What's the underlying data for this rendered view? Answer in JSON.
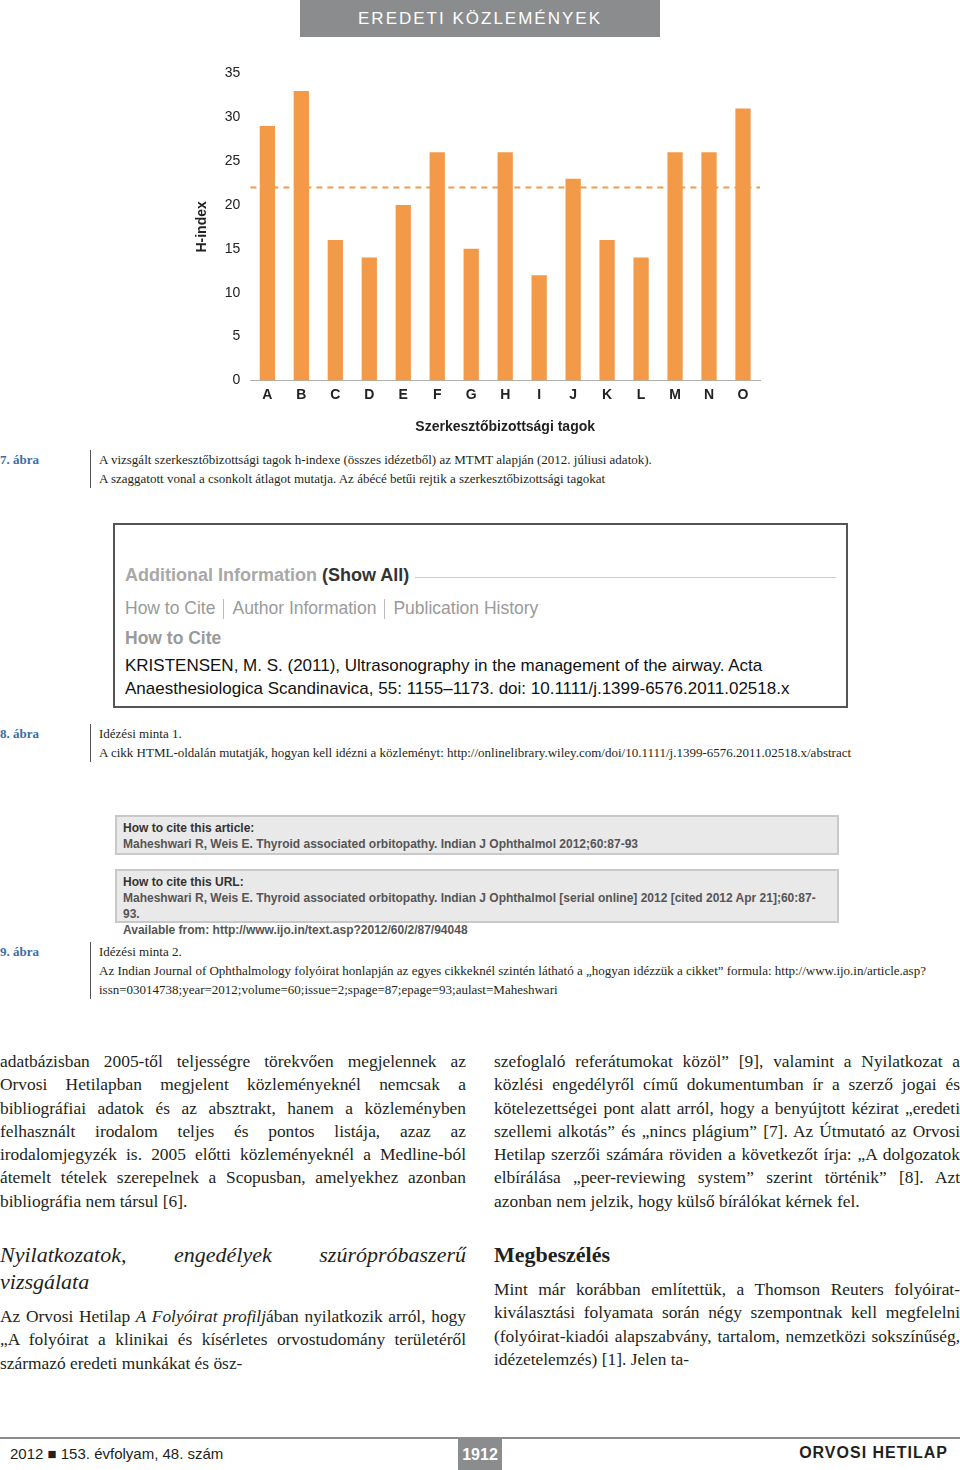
{
  "header": {
    "title": "EREDETI KÖZLEMÉNYEK"
  },
  "chart_data": {
    "type": "bar",
    "categories": [
      "A",
      "B",
      "C",
      "D",
      "E",
      "F",
      "G",
      "H",
      "I",
      "J",
      "K",
      "L",
      "M",
      "N",
      "O"
    ],
    "values": [
      29,
      33,
      16,
      14,
      20,
      26,
      15,
      26,
      12,
      23,
      16,
      14,
      26,
      26,
      31
    ],
    "color": "#f39a48",
    "trimmed_mean": 22,
    "x_label": "Szerkesztőbizottsági tagok",
    "y_label": "H-index",
    "ylim": [
      0,
      35
    ],
    "yticks": [
      0,
      5,
      10,
      15,
      20,
      25,
      30,
      35
    ],
    "grid": false
  },
  "figures": [
    {
      "label": "7. ábra",
      "caption": [
        "A vizsgált szerkesztőbizottsági tagok h-indexe (összes idézetből) az MTMT alapján (2012. júliusi adatok).",
        "A szaggatott vonal a csonkolt átlagot mutatja. Az ábécé betűi rejtik a szerkesztőbizottsági tagokat"
      ]
    },
    {
      "label": "8. ábra",
      "caption": [
        "Idézési minta 1.",
        "A cikk HTML-oldalán mutatják, hogyan kell idézni a közleményt: http://onlinelibrary.wiley.com/doi/10.1111/j.1399-6576.2011.02518.x/abstract"
      ],
      "screenshot": {
        "section": "Additional Information",
        "show_all": "(Show All)",
        "tabs": [
          "How to Cite",
          "Author Information",
          "Publication History"
        ],
        "heading": "How to Cite",
        "citation": [
          "KRISTENSEN, M. S. (2011), Ultrasonography in the management of the airway. Acta",
          "Anaesthesiologica Scandinavica, 55: 1155–1173. doi: 10.1111/j.1399-6576.2011.02518.x"
        ]
      }
    },
    {
      "label": "9. ábra",
      "caption": [
        "Idézési minta 2.",
        "Az Indian Journal of Ophthalmology folyóirat honlapján az egyes cikkeknél szintén látható a „hogyan idézzük a cikket” formula: http://www.ijo.in/article.asp?issn=03014738;year=2012;volume=60;issue=2;spage=87;epage=93;aulast=Maheshwari"
      ],
      "screenshot": [
        {
          "title": "How to cite this article:",
          "lines": [
            "Maheshwari R, Weis E. Thyroid associated orbitopathy. Indian J Ophthalmol 2012;60:87-93"
          ]
        },
        {
          "title": "How to cite this URL:",
          "lines": [
            "Maheshwari R, Weis E. Thyroid associated orbitopathy. Indian J Ophthalmol [serial online] 2012 [cited 2012 Apr 21];60:87-93.",
            "Available from: http://www.ijo.in/text.asp?2012/60/2/87/94048"
          ]
        }
      ]
    }
  ],
  "columns": [
    [
      {
        "kind": "p",
        "segments": [
          {
            "text": "adatbázisban 2005-től teljességre törekvően megjelennek az Orvosi Hetilapban megjelent közleményeknél nemcsak a bibliográfiai adatok és az absztrakt, hanem a közleményben felhasznált irodalom teljes és pontos listája, azaz az irodalomjegyzék is. 2005 előtti közleményeknél a Medline-ból átemelt tételek szerepelnek a Scopusban, amelyekhez azonban bibliográfia nem társul [6]."
          }
        ]
      },
      {
        "kind": "h",
        "italic": true,
        "segments": [
          {
            "text": "Nyilatkozatok, engedélyek szúrópróbaszerű vizsgálata"
          }
        ]
      },
      {
        "kind": "p",
        "segments": [
          {
            "text": "Az Orvosi Hetilap "
          },
          {
            "text": "A Folyóirat profilj",
            "italic": true
          },
          {
            "text": "ában nyilatkozik arról, hogy „A folyóirat a klinikai és kísérletes orvostudomány területéről származó eredeti munkákat és ösz-"
          }
        ]
      }
    ],
    [
      {
        "kind": "p",
        "segments": [
          {
            "text": "szefoglaló referátumokat közöl” [9], valamint a Nyilatkozat a közlési engedélyről című dokumentumban ír a szerző jogai és kötelezettségei pont alatt arról, hogy a benyújtott kézirat „eredeti szellemi alkotás” és „nincs plágium” [7]. Az Útmutató az Orvosi Hetilap szerzői számára röviden a következőt írja: „A dolgozatok elbírálása „peer-reviewing system” szerint történik” [8]. Azt azonban nem jelzik, hogy külső bírálókat kérnek fel."
          }
        ]
      },
      {
        "kind": "h",
        "italic": false,
        "segments": [
          {
            "text": "Megbeszélés"
          }
        ]
      },
      {
        "kind": "p",
        "segments": [
          {
            "text": "Mint már korábban említettük, a Thomson Reuters folyóirat-kiválasztási folyamata során négy szempontnak kell megfelelni (folyóirat-kiadói alapszabvány, tartalom, nemzetközi sokszínűség, idézetelemzés) [1]. Jelen ta-"
          }
        ]
      }
    ]
  ],
  "footer": {
    "issue": "2012 ■ 153. évfolyam, 48. szám",
    "page": "1912",
    "journal": "ORVOSI HETILAP"
  }
}
